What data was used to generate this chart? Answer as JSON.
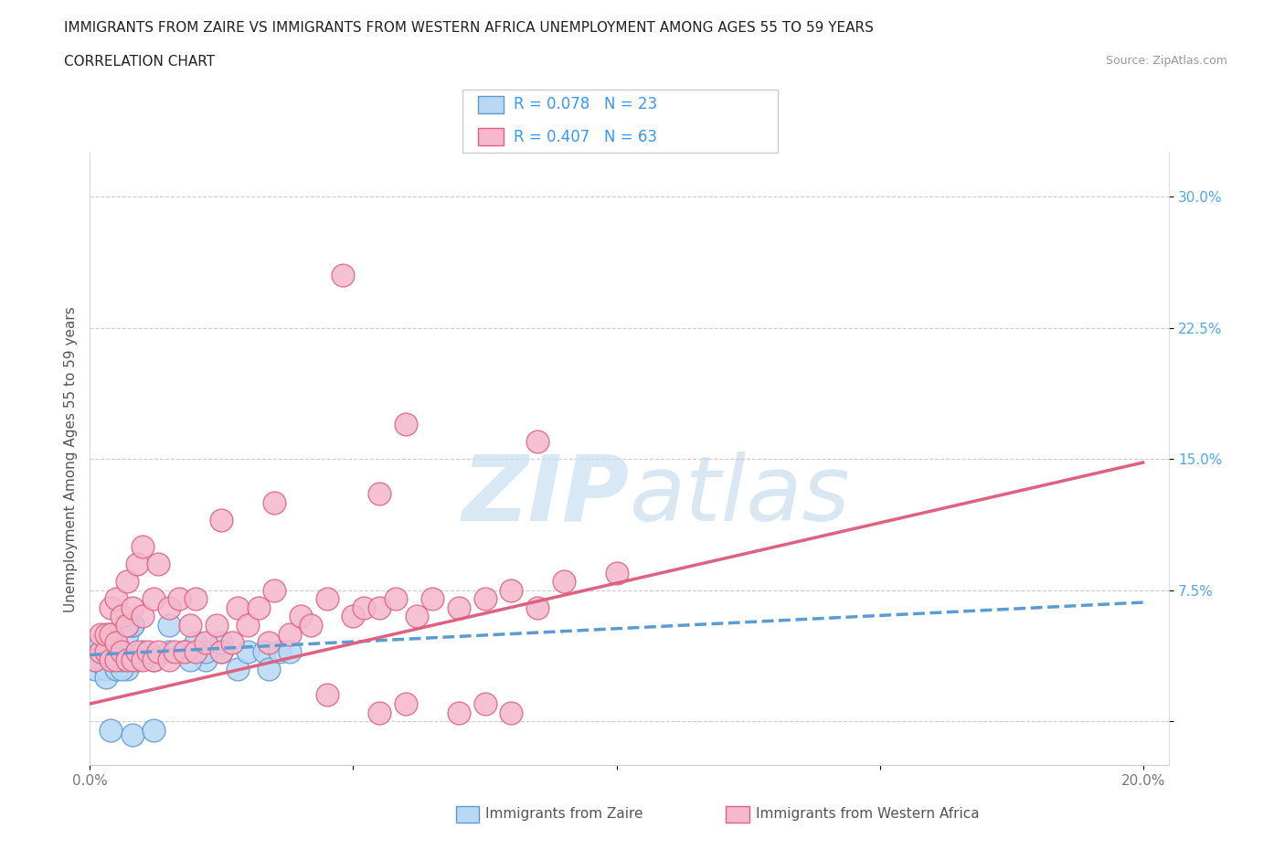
{
  "title_line1": "IMMIGRANTS FROM ZAIRE VS IMMIGRANTS FROM WESTERN AFRICA UNEMPLOYMENT AMONG AGES 55 TO 59 YEARS",
  "title_line2": "CORRELATION CHART",
  "source_text": "Source: ZipAtlas.com",
  "ylabel": "Unemployment Among Ages 55 to 59 years",
  "xlim": [
    0.0,
    0.205
  ],
  "ylim": [
    -0.025,
    0.325
  ],
  "xticks": [
    0.0,
    0.05,
    0.1,
    0.15,
    0.2
  ],
  "xtick_labels": [
    "0.0%",
    "",
    "",
    "",
    "20.0%"
  ],
  "yticks": [
    0.0,
    0.075,
    0.15,
    0.225,
    0.3
  ],
  "ytick_labels": [
    "",
    "7.5%",
    "15.0%",
    "22.5%",
    "30.0%"
  ],
  "zaire_scatter_x": [
    0.001,
    0.001,
    0.002,
    0.002,
    0.003,
    0.003,
    0.004,
    0.004,
    0.004,
    0.005,
    0.005,
    0.006,
    0.006,
    0.007,
    0.007,
    0.008,
    0.008,
    0.009,
    0.01,
    0.012,
    0.015,
    0.02,
    0.022,
    0.025,
    0.003,
    0.005,
    0.006,
    0.006,
    0.007,
    0.015,
    0.018,
    0.019,
    0.022,
    0.025,
    0.028,
    0.03,
    0.033,
    0.034,
    0.036,
    0.038,
    0.004,
    0.008,
    0.012
  ],
  "zaire_scatter_y": [
    0.03,
    0.035,
    0.04,
    0.045,
    0.03,
    0.04,
    0.035,
    0.04,
    0.05,
    0.03,
    0.04,
    0.035,
    0.04,
    0.03,
    0.05,
    0.055,
    0.055,
    0.035,
    0.04,
    0.035,
    0.055,
    0.045,
    0.035,
    0.04,
    0.025,
    0.03,
    0.03,
    0.035,
    0.055,
    0.04,
    0.04,
    0.035,
    0.04,
    0.045,
    0.03,
    0.04,
    0.04,
    0.03,
    0.04,
    0.04,
    -0.005,
    -0.008,
    -0.005
  ],
  "western_scatter_x": [
    0.001,
    0.002,
    0.002,
    0.003,
    0.003,
    0.004,
    0.004,
    0.004,
    0.005,
    0.005,
    0.005,
    0.006,
    0.006,
    0.007,
    0.007,
    0.007,
    0.008,
    0.008,
    0.009,
    0.009,
    0.01,
    0.01,
    0.01,
    0.011,
    0.012,
    0.012,
    0.013,
    0.013,
    0.015,
    0.015,
    0.016,
    0.017,
    0.018,
    0.019,
    0.02,
    0.02,
    0.022,
    0.024,
    0.025,
    0.025,
    0.027,
    0.028,
    0.03,
    0.032,
    0.034,
    0.035,
    0.038,
    0.04,
    0.042,
    0.045,
    0.05,
    0.052,
    0.055,
    0.058,
    0.062,
    0.065,
    0.07,
    0.075,
    0.08,
    0.085,
    0.09,
    0.1,
    0.055,
    0.06
  ],
  "western_scatter_y": [
    0.035,
    0.04,
    0.05,
    0.04,
    0.05,
    0.035,
    0.05,
    0.065,
    0.035,
    0.045,
    0.07,
    0.04,
    0.06,
    0.035,
    0.055,
    0.08,
    0.035,
    0.065,
    0.04,
    0.09,
    0.035,
    0.06,
    0.1,
    0.04,
    0.035,
    0.07,
    0.04,
    0.09,
    0.035,
    0.065,
    0.04,
    0.07,
    0.04,
    0.055,
    0.04,
    0.07,
    0.045,
    0.055,
    0.04,
    0.115,
    0.045,
    0.065,
    0.055,
    0.065,
    0.045,
    0.075,
    0.05,
    0.06,
    0.055,
    0.07,
    0.06,
    0.065,
    0.065,
    0.07,
    0.06,
    0.07,
    0.065,
    0.07,
    0.075,
    0.065,
    0.08,
    0.085,
    0.13,
    0.17
  ],
  "western_outlier_x": [
    0.048
  ],
  "western_outlier_y": [
    0.255
  ],
  "western_outlier2_x": [
    0.085
  ],
  "western_outlier2_y": [
    0.16
  ],
  "western_outlier3_x": [
    0.035
  ],
  "western_outlier3_y": [
    0.125
  ],
  "western_neg_x": [
    0.045,
    0.055,
    0.06,
    0.07,
    0.075,
    0.08
  ],
  "western_neg_y": [
    0.015,
    0.005,
    0.01,
    0.005,
    0.01,
    0.005
  ],
  "zaire_line_x": [
    0.0,
    0.2
  ],
  "zaire_line_y": [
    0.038,
    0.068
  ],
  "western_line_x": [
    0.0,
    0.2
  ],
  "western_line_y": [
    0.01,
    0.148
  ],
  "scatter_zaire_color": "#b8d8f5",
  "scatter_zaire_edge": "#5b9bd5",
  "scatter_western_color": "#f5b8cc",
  "scatter_western_edge": "#e06080",
  "line_zaire_color": "#5b9bd5",
  "line_western_color": "#e06080",
  "watermark_color": "#d0e8f8",
  "background_color": "#ffffff",
  "grid_color": "#cccccc",
  "title_color": "#222222",
  "axis_label_color": "#555555",
  "tick_color_y": "#4da6ff",
  "tick_color_x": "#777777",
  "source_color": "#999999",
  "bottom_legend_color": "#555555"
}
